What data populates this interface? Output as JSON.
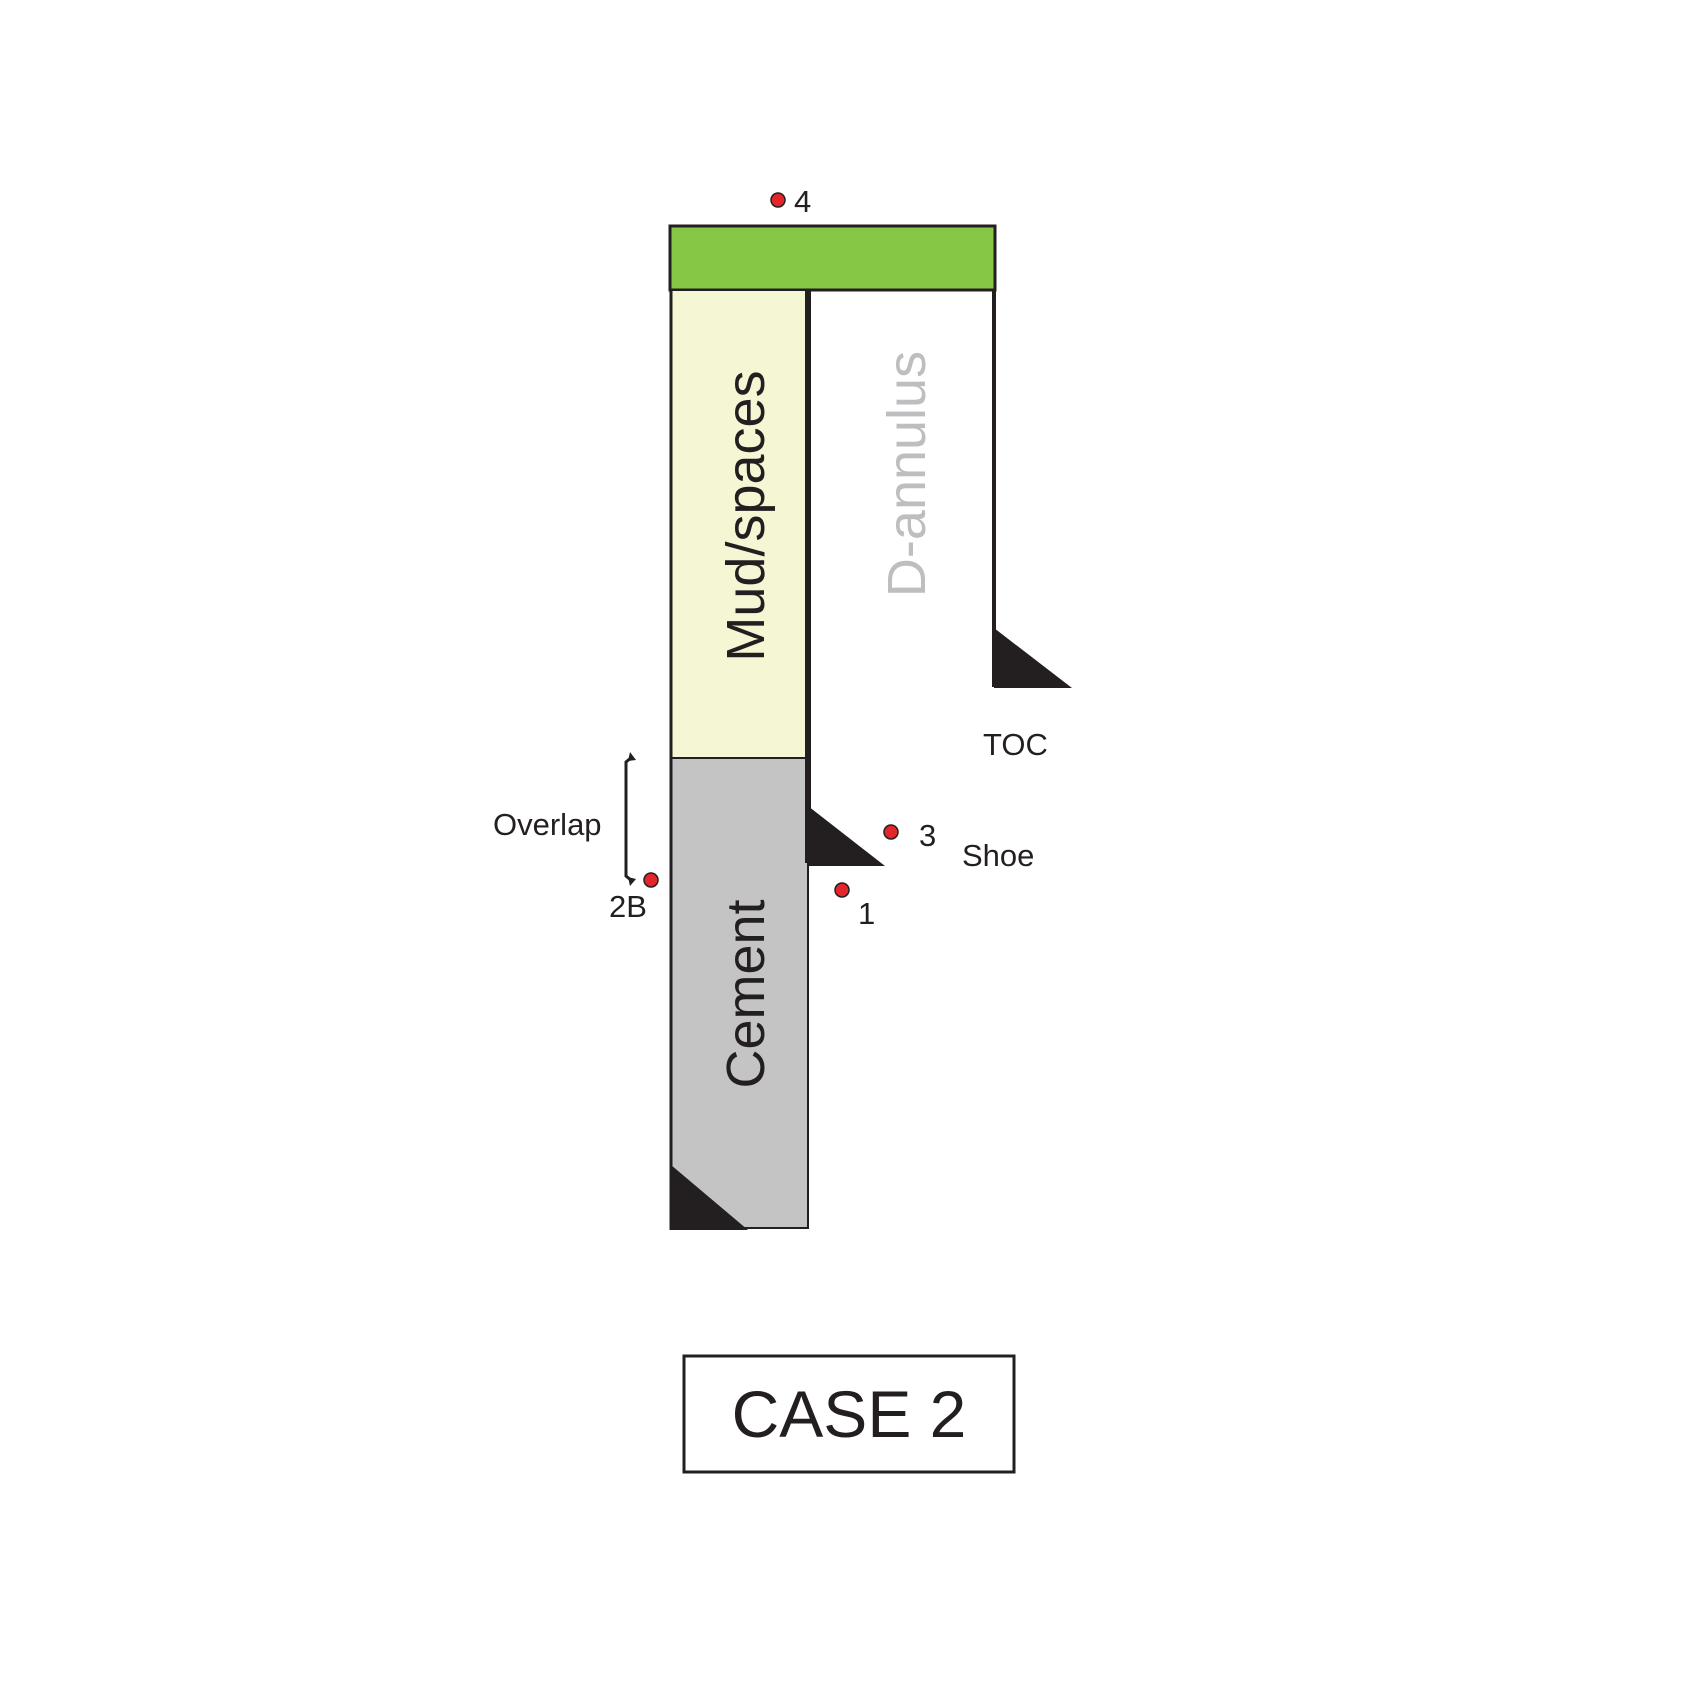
{
  "diagram": {
    "title": "CASE 2",
    "regions": {
      "mud_spaces": "Mud/spaces",
      "cement": "Cement",
      "d_annulus": "D-annulus"
    },
    "annotations": {
      "overlap": "Overlap",
      "toc": "TOC",
      "shoe": "Shoe"
    },
    "points": {
      "p4": "4",
      "p3": "3",
      "p1": "1",
      "p2b": "2B"
    },
    "colors": {
      "cap": "#86c846",
      "mud": "#f4f6d4",
      "cement": "#c4c4c4",
      "outline": "#231f20",
      "d_annulus_text": "#bcbec0",
      "point": "#e3262a"
    }
  }
}
